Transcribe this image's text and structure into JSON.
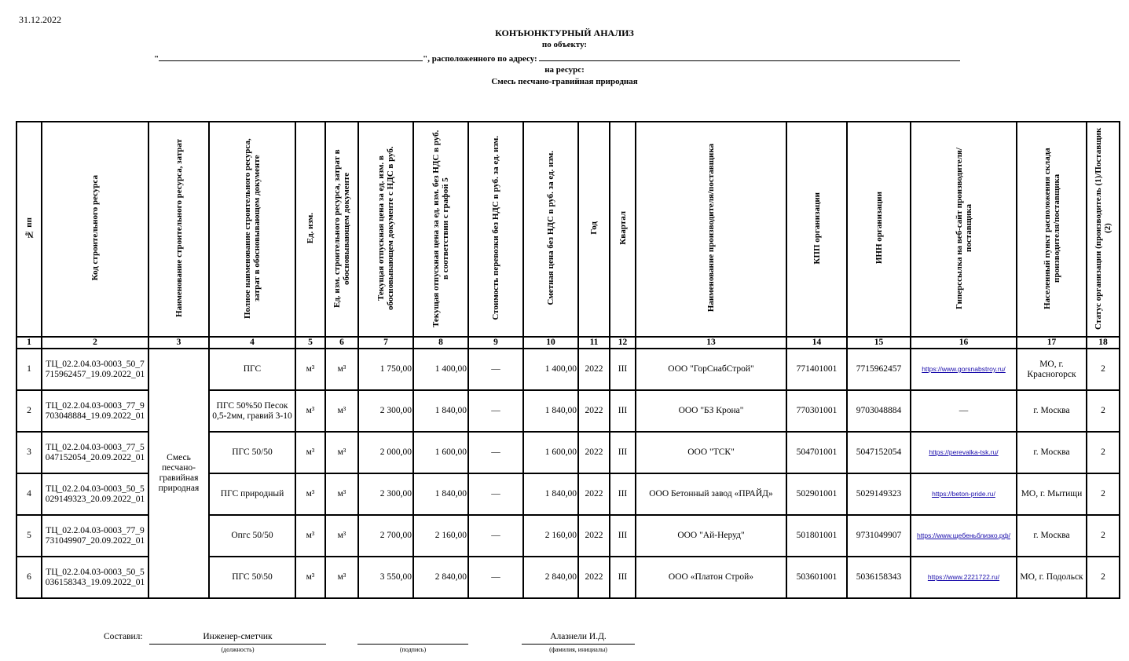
{
  "date": "31.12.2022",
  "title": "КОНЪЮНКТУРНЫЙ АНАЛИЗ",
  "subtitle_object": "по объекту:",
  "address_line": {
    "open_quote": "\"",
    "middle": "\", расположенного по адресу:"
  },
  "subtitle_resource": "на ресурс:",
  "resource_name": "Смесь песчано-гравийная природная",
  "columns": [
    "№ пп",
    "Код строительного ресурса",
    "Наименование строительного ресурса, затрат",
    "Полное наименование строительного ресурса, затрат в обосновывающем документе",
    "Ед. изм.",
    "Ед. изм. строительного ресурса, затрат в обосновывающем документе",
    "Текущая отпускная цена за ед. изм. в обосновывающем документе с НДС в руб.",
    "Текущая отпускная цена за ед. изм. без НДС в руб. в соответствии с графой 5",
    "Стоимость перевозки без НДС в руб. за ед. изм.",
    "Сметная цена без НДС в руб. за ед. изм.",
    "Год",
    "Квартал",
    "Наименование производителя/поставщика",
    "КПП организации",
    "ИНН организации",
    "Гиперссылка на веб-сайт производителя/поставщика",
    "Населенный пункт расположения склада производителя/поставщика",
    "Статус организации (производитель (1)/Поставщик (2)"
  ],
  "column_numbers": [
    "1",
    "2",
    "3",
    "4",
    "5",
    "6",
    "7",
    "8",
    "9",
    "10",
    "11",
    "12",
    "13",
    "14",
    "15",
    "16",
    "17",
    "18"
  ],
  "merged_resource_name": "Смесь песчано-гравийная природная",
  "rows": [
    {
      "n": "1",
      "code": "ТЦ_02.2.04.03-0003_50_7715962457_19.09.2022_01",
      "full": "ПГС",
      "unit": "м³",
      "unit_doc": "м³",
      "price_vat": "1 750,00",
      "price_novat": "1 400,00",
      "transport": "—",
      "estimate": "1 400,00",
      "year": "2022",
      "quarter": "III",
      "supplier": "ООО \"ГорСнабСтрой\"",
      "kpp": "771401001",
      "inn": "7715962457",
      "url": "https://www.gorsnabstroy.ru/",
      "city": "МО, г. Красногорск",
      "status": "2"
    },
    {
      "n": "2",
      "code": "ТЦ_02.2.04.03-0003_77_9703048884_19.09.2022_01",
      "full": "ПГС 50%50 Песок 0,5-2мм, гравий 3-10",
      "unit": "м³",
      "unit_doc": "м³",
      "price_vat": "2 300,00",
      "price_novat": "1 840,00",
      "transport": "—",
      "estimate": "1 840,00",
      "year": "2022",
      "quarter": "III",
      "supplier": "ООО \"БЗ Крона\"",
      "kpp": "770301001",
      "inn": "9703048884",
      "url": "—",
      "city": "г. Москва",
      "status": "2"
    },
    {
      "n": "3",
      "code": "ТЦ_02.2.04.03-0003_77_5047152054_20.09.2022_01",
      "full": "ПГС 50/50",
      "unit": "м³",
      "unit_doc": "м³",
      "price_vat": "2 000,00",
      "price_novat": "1 600,00",
      "transport": "—",
      "estimate": "1 600,00",
      "year": "2022",
      "quarter": "III",
      "supplier": "ООО \"ТСК\"",
      "kpp": "504701001",
      "inn": "5047152054",
      "url": "https://perevalka-tsk.ru/",
      "city": "г. Москва",
      "status": "2"
    },
    {
      "n": "4",
      "code": "ТЦ_02.2.04.03-0003_50_5029149323_20.09.2022_01",
      "full": "ПГС природный",
      "unit": "м³",
      "unit_doc": "м³",
      "price_vat": "2 300,00",
      "price_novat": "1 840,00",
      "transport": "—",
      "estimate": "1 840,00",
      "year": "2022",
      "quarter": "III",
      "supplier": "ООО Бетонный завод «ПРАЙД»",
      "kpp": "502901001",
      "inn": "5029149323",
      "url": "https://beton-pride.ru/",
      "city": "МО, г. Мытищи",
      "status": "2"
    },
    {
      "n": "5",
      "code": "ТЦ_02.2.04.03-0003_77_9731049907_20.09.2022_01",
      "full": "Опгс 50/50",
      "unit": "м³",
      "unit_doc": "м³",
      "price_vat": "2 700,00",
      "price_novat": "2 160,00",
      "transport": "—",
      "estimate": "2 160,00",
      "year": "2022",
      "quarter": "III",
      "supplier": "ООО \"Ай-Неруд\"",
      "kpp": "501801001",
      "inn": "9731049907",
      "url": "https://www.щебеньблизко.рф/",
      "city": "г. Москва",
      "status": "2"
    },
    {
      "n": "6",
      "code": "ТЦ_02.2.04.03-0003_50_5036158343_19.09.2022_01",
      "full": "ПГС 50\\50",
      "unit": "м³",
      "unit_doc": "м³",
      "price_vat": "3 550,00",
      "price_novat": "2 840,00",
      "transport": "—",
      "estimate": "2 840,00",
      "year": "2022",
      "quarter": "III",
      "supplier": "ООО «Платон Строй»",
      "kpp": "503601001",
      "inn": "5036158343",
      "url": "https://www.2221722.ru/",
      "city": "МО, г. Подольск",
      "status": "2"
    }
  ],
  "signature": {
    "label": "Составил:",
    "position": "Инженер-сметчик",
    "position_caption": "(должность)",
    "signature_caption": "(подпись)",
    "name": "Алазнели И.Д.",
    "name_caption": "(фамилия, инициалы)"
  },
  "colors": {
    "link": "#1a0dab",
    "border": "#000000"
  }
}
